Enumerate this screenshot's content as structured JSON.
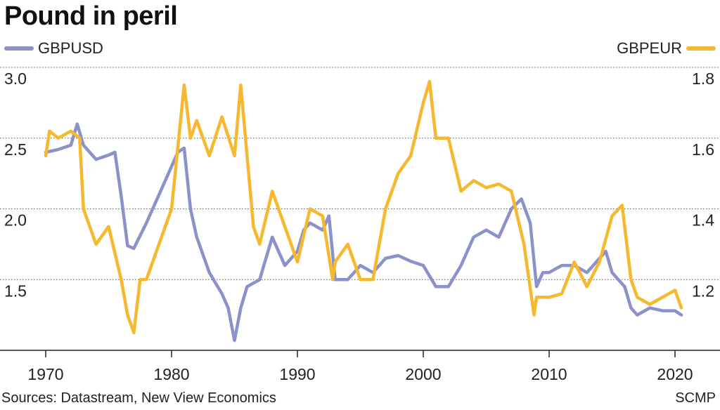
{
  "chart_data": {
    "type": "line",
    "title": "Pound in peril",
    "source": "Sources: Datastream, New View Economics",
    "credit": "SCMP",
    "xlim": [
      1970,
      2020.6
    ],
    "x_ticks": [
      1970,
      1980,
      1990,
      2000,
      2010,
      2020
    ],
    "left_axis": {
      "ylim": [
        1.0,
        3.0
      ],
      "ticks": [
        "3.0",
        "2.5",
        "2.0",
        "1.5"
      ],
      "tick_values": [
        3.0,
        2.5,
        2.0,
        1.5
      ]
    },
    "right_axis": {
      "ylim": [
        1.0,
        1.8
      ],
      "ticks": [
        "1.8",
        "1.6",
        "1.4",
        "1.2"
      ],
      "tick_values": [
        1.8,
        1.6,
        1.4,
        1.2
      ]
    },
    "grid": true,
    "series": [
      {
        "name": "GBPUSD",
        "axis": "left",
        "color": "#8a92c9",
        "legend": "top-left",
        "x": [
          1970,
          1971,
          1972,
          1972.5,
          1973,
          1974,
          1975,
          1975.5,
          1976,
          1976.5,
          1977,
          1978,
          1979,
          1980,
          1980.5,
          1981,
          1981.5,
          1982,
          1983,
          1984,
          1984.5,
          1985,
          1985.5,
          1986,
          1987,
          1988,
          1989,
          1990,
          1990.5,
          1991,
          1992,
          1992.5,
          1993,
          1994,
          1995,
          1996,
          1997,
          1998,
          1999,
          2000,
          2001,
          2002,
          2003,
          2004,
          2005,
          2006,
          2007,
          2007.8,
          2008.5,
          2009,
          2009.5,
          2010,
          2011,
          2012,
          2013,
          2014,
          2014.5,
          2015,
          2016,
          2016.5,
          2017,
          2018,
          2019,
          2020,
          2020.5
        ],
        "values": [
          2.4,
          2.42,
          2.45,
          2.6,
          2.45,
          2.35,
          2.38,
          2.4,
          2.09,
          1.74,
          1.72,
          1.9,
          2.1,
          2.3,
          2.4,
          2.43,
          2.0,
          1.8,
          1.55,
          1.4,
          1.3,
          1.07,
          1.3,
          1.45,
          1.5,
          1.8,
          1.6,
          1.7,
          1.85,
          1.9,
          1.85,
          1.95,
          1.5,
          1.5,
          1.6,
          1.55,
          1.65,
          1.67,
          1.63,
          1.6,
          1.45,
          1.45,
          1.6,
          1.8,
          1.85,
          1.8,
          2.0,
          2.07,
          1.9,
          1.45,
          1.55,
          1.55,
          1.6,
          1.6,
          1.55,
          1.65,
          1.7,
          1.55,
          1.45,
          1.3,
          1.25,
          1.3,
          1.28,
          1.28,
          1.25
        ]
      },
      {
        "name": "GBPEUR",
        "axis": "right",
        "color": "#f5b82e",
        "legend": "top-right",
        "x": [
          1970,
          1970.3,
          1971,
          1972,
          1972.7,
          1973,
          1974,
          1975,
          1976,
          1976.5,
          1977,
          1977.5,
          1978,
          1979,
          1980,
          1981,
          1981.5,
          1982,
          1983,
          1984,
          1985,
          1985.5,
          1986,
          1986.5,
          1987,
          1988,
          1989,
          1990,
          1991,
          1992,
          1992.8,
          1993,
          1994,
          1995,
          1996,
          1997,
          1998,
          1999,
          2000,
          2000.5,
          2001,
          2002,
          2003,
          2004,
          2005,
          2006,
          2007,
          2008,
          2008.8,
          2009,
          2010,
          2011,
          2012,
          2013,
          2014,
          2015,
          2015.8,
          2016.5,
          2017,
          2018,
          2019,
          2020,
          2020.5
        ],
        "values": [
          1.55,
          1.62,
          1.6,
          1.62,
          1.6,
          1.4,
          1.3,
          1.35,
          1.2,
          1.1,
          1.05,
          1.2,
          1.2,
          1.3,
          1.4,
          1.75,
          1.6,
          1.65,
          1.55,
          1.66,
          1.55,
          1.75,
          1.55,
          1.35,
          1.3,
          1.45,
          1.35,
          1.25,
          1.4,
          1.38,
          1.2,
          1.25,
          1.3,
          1.2,
          1.2,
          1.4,
          1.5,
          1.55,
          1.7,
          1.76,
          1.6,
          1.6,
          1.45,
          1.48,
          1.46,
          1.47,
          1.45,
          1.3,
          1.1,
          1.15,
          1.15,
          1.16,
          1.25,
          1.18,
          1.25,
          1.38,
          1.41,
          1.2,
          1.15,
          1.13,
          1.15,
          1.17,
          1.12
        ]
      }
    ]
  }
}
